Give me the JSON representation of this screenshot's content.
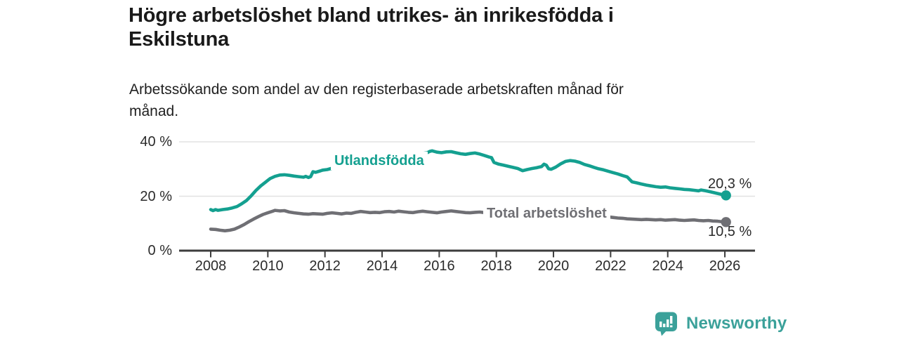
{
  "header": {
    "title": "Högre arbetslöshet bland utrikes- än inrikesfödda i Eskilstuna",
    "subtitle": "Arbetssökande som andel av den registerbaserade arbetskraften månad för månad."
  },
  "chart_data": {
    "type": "line",
    "title": "Högre arbetslöshet bland utrikes- än inrikesfödda i Eskilstuna",
    "xlabel": "",
    "ylabel": "",
    "ylim": [
      0,
      42
    ],
    "xlim": [
      2006.9,
      2027.05
    ],
    "grid": "horizontal-only",
    "legend": "inline-labels-on-lines",
    "x_tick_years": [
      2008,
      2010,
      2012,
      2014,
      2016,
      2018,
      2020,
      2022,
      2024,
      2026
    ],
    "x_ticks": [
      "2008",
      "2010",
      "2012",
      "2014",
      "2016",
      "2018",
      "2020",
      "2022",
      "2024",
      "2026"
    ],
    "y_ticks": [
      {
        "value": 0,
        "label": "0 %"
      },
      {
        "value": 20,
        "label": "20 %"
      },
      {
        "value": 40,
        "label": "40 %"
      }
    ],
    "series": [
      {
        "name": "Utlandsfödda",
        "color": "#14a090",
        "end_label": "20,3 %",
        "end_value": 20.3,
        "points": [
          [
            2008.0,
            15.1
          ],
          [
            2008.08,
            14.7
          ],
          [
            2008.17,
            15.1
          ],
          [
            2008.25,
            14.8
          ],
          [
            2008.42,
            15.1
          ],
          [
            2008.58,
            15.3
          ],
          [
            2008.75,
            15.7
          ],
          [
            2008.92,
            16.2
          ],
          [
            2009.08,
            17.2
          ],
          [
            2009.25,
            18.4
          ],
          [
            2009.42,
            20.2
          ],
          [
            2009.58,
            22.1
          ],
          [
            2009.75,
            23.8
          ],
          [
            2009.92,
            25.2
          ],
          [
            2010.08,
            26.5
          ],
          [
            2010.25,
            27.3
          ],
          [
            2010.42,
            27.8
          ],
          [
            2010.58,
            27.9
          ],
          [
            2010.75,
            27.7
          ],
          [
            2010.92,
            27.4
          ],
          [
            2011.08,
            27.2
          ],
          [
            2011.25,
            27.0
          ],
          [
            2011.33,
            27.3
          ],
          [
            2011.42,
            26.9
          ],
          [
            2011.5,
            27.2
          ],
          [
            2011.58,
            29.0
          ],
          [
            2011.67,
            28.8
          ],
          [
            2011.83,
            29.3
          ],
          [
            2011.92,
            29.6
          ],
          [
            2012.08,
            29.8
          ],
          [
            2012.25,
            30.3
          ],
          [
            2012.42,
            30.6
          ],
          [
            2012.58,
            30.9
          ],
          [
            2012.83,
            31.3
          ],
          [
            2013.08,
            31.8
          ],
          [
            2013.33,
            32.4
          ],
          [
            2013.58,
            32.9
          ],
          [
            2013.83,
            33.3
          ],
          [
            2014.08,
            33.8
          ],
          [
            2014.33,
            34.2
          ],
          [
            2014.58,
            34.6
          ],
          [
            2014.83,
            35.0
          ],
          [
            2015.08,
            35.3
          ],
          [
            2015.33,
            35.6
          ],
          [
            2015.58,
            36.0
          ],
          [
            2015.67,
            36.5
          ],
          [
            2015.75,
            36.7
          ],
          [
            2015.92,
            36.2
          ],
          [
            2016.08,
            36.0
          ],
          [
            2016.25,
            36.3
          ],
          [
            2016.42,
            36.4
          ],
          [
            2016.58,
            36.0
          ],
          [
            2016.75,
            35.6
          ],
          [
            2016.92,
            35.4
          ],
          [
            2017.08,
            35.7
          ],
          [
            2017.25,
            35.9
          ],
          [
            2017.42,
            35.5
          ],
          [
            2017.58,
            35.0
          ],
          [
            2017.75,
            34.4
          ],
          [
            2017.83,
            34.2
          ],
          [
            2017.92,
            32.4
          ],
          [
            2018.08,
            31.8
          ],
          [
            2018.25,
            31.4
          ],
          [
            2018.42,
            31.0
          ],
          [
            2018.58,
            30.6
          ],
          [
            2018.75,
            30.2
          ],
          [
            2018.92,
            29.4
          ],
          [
            2019.08,
            29.8
          ],
          [
            2019.25,
            30.2
          ],
          [
            2019.42,
            30.5
          ],
          [
            2019.58,
            30.9
          ],
          [
            2019.67,
            31.8
          ],
          [
            2019.75,
            31.4
          ],
          [
            2019.83,
            30.1
          ],
          [
            2019.92,
            29.9
          ],
          [
            2020.08,
            30.7
          ],
          [
            2020.25,
            31.9
          ],
          [
            2020.42,
            32.8
          ],
          [
            2020.58,
            33.1
          ],
          [
            2020.75,
            32.9
          ],
          [
            2020.92,
            32.4
          ],
          [
            2021.08,
            31.7
          ],
          [
            2021.25,
            31.2
          ],
          [
            2021.42,
            30.6
          ],
          [
            2021.58,
            30.1
          ],
          [
            2021.75,
            29.7
          ],
          [
            2021.92,
            29.2
          ],
          [
            2022.08,
            28.7
          ],
          [
            2022.25,
            28.2
          ],
          [
            2022.42,
            27.6
          ],
          [
            2022.58,
            27.1
          ],
          [
            2022.75,
            25.3
          ],
          [
            2022.92,
            24.9
          ],
          [
            2023.08,
            24.5
          ],
          [
            2023.25,
            24.1
          ],
          [
            2023.42,
            23.8
          ],
          [
            2023.58,
            23.5
          ],
          [
            2023.75,
            23.3
          ],
          [
            2023.92,
            23.4
          ],
          [
            2024.08,
            23.1
          ],
          [
            2024.25,
            22.9
          ],
          [
            2024.42,
            22.7
          ],
          [
            2024.58,
            22.5
          ],
          [
            2024.75,
            22.4
          ],
          [
            2024.92,
            22.2
          ],
          [
            2025.08,
            22.0
          ],
          [
            2025.17,
            22.3
          ],
          [
            2025.33,
            22.0
          ],
          [
            2025.5,
            21.6
          ],
          [
            2025.67,
            21.2
          ],
          [
            2025.83,
            20.8
          ],
          [
            2026.04,
            20.3
          ]
        ]
      },
      {
        "name": "Total arbetslöshet",
        "color": "#6f6f74",
        "end_label": "10,5 %",
        "end_value": 10.5,
        "points": [
          [
            2008.0,
            7.9
          ],
          [
            2008.17,
            7.8
          ],
          [
            2008.33,
            7.5
          ],
          [
            2008.5,
            7.3
          ],
          [
            2008.67,
            7.5
          ],
          [
            2008.83,
            7.9
          ],
          [
            2009.0,
            8.7
          ],
          [
            2009.17,
            9.6
          ],
          [
            2009.33,
            10.6
          ],
          [
            2009.5,
            11.6
          ],
          [
            2009.67,
            12.5
          ],
          [
            2009.83,
            13.3
          ],
          [
            2010.0,
            13.9
          ],
          [
            2010.17,
            14.5
          ],
          [
            2010.25,
            14.8
          ],
          [
            2010.42,
            14.6
          ],
          [
            2010.58,
            14.7
          ],
          [
            2010.75,
            14.2
          ],
          [
            2010.92,
            13.9
          ],
          [
            2011.08,
            13.7
          ],
          [
            2011.25,
            13.5
          ],
          [
            2011.42,
            13.4
          ],
          [
            2011.58,
            13.6
          ],
          [
            2011.75,
            13.5
          ],
          [
            2011.92,
            13.4
          ],
          [
            2012.08,
            13.7
          ],
          [
            2012.25,
            13.9
          ],
          [
            2012.42,
            13.7
          ],
          [
            2012.58,
            13.5
          ],
          [
            2012.75,
            13.8
          ],
          [
            2012.92,
            13.7
          ],
          [
            2013.08,
            14.1
          ],
          [
            2013.25,
            14.4
          ],
          [
            2013.42,
            14.2
          ],
          [
            2013.58,
            14.0
          ],
          [
            2013.75,
            14.1
          ],
          [
            2013.92,
            14.0
          ],
          [
            2014.08,
            14.3
          ],
          [
            2014.25,
            14.4
          ],
          [
            2014.42,
            14.2
          ],
          [
            2014.58,
            14.5
          ],
          [
            2014.75,
            14.3
          ],
          [
            2014.92,
            14.1
          ],
          [
            2015.08,
            14.0
          ],
          [
            2015.25,
            14.3
          ],
          [
            2015.42,
            14.5
          ],
          [
            2015.58,
            14.3
          ],
          [
            2015.75,
            14.1
          ],
          [
            2015.92,
            13.9
          ],
          [
            2016.08,
            14.2
          ],
          [
            2016.25,
            14.4
          ],
          [
            2016.42,
            14.6
          ],
          [
            2016.58,
            14.4
          ],
          [
            2016.75,
            14.2
          ],
          [
            2016.92,
            14.0
          ],
          [
            2017.08,
            13.9
          ],
          [
            2017.25,
            14.1
          ],
          [
            2017.42,
            14.2
          ],
          [
            2017.58,
            14.0
          ],
          [
            2017.75,
            13.8
          ],
          [
            2017.92,
            13.6
          ],
          [
            2018.17,
            13.4
          ],
          [
            2018.42,
            13.2
          ],
          [
            2018.67,
            13.0
          ],
          [
            2018.92,
            12.9
          ],
          [
            2019.17,
            13.0
          ],
          [
            2019.42,
            13.1
          ],
          [
            2019.67,
            13.0
          ],
          [
            2019.92,
            13.2
          ],
          [
            2020.17,
            13.7
          ],
          [
            2020.42,
            14.0
          ],
          [
            2020.67,
            14.1
          ],
          [
            2020.92,
            13.8
          ],
          [
            2021.17,
            13.4
          ],
          [
            2021.42,
            13.0
          ],
          [
            2021.67,
            12.7
          ],
          [
            2021.92,
            12.4
          ],
          [
            2022.08,
            12.2
          ],
          [
            2022.25,
            12.0
          ],
          [
            2022.42,
            11.9
          ],
          [
            2022.58,
            11.7
          ],
          [
            2022.75,
            11.6
          ],
          [
            2022.92,
            11.5
          ],
          [
            2023.08,
            11.4
          ],
          [
            2023.25,
            11.5
          ],
          [
            2023.42,
            11.4
          ],
          [
            2023.58,
            11.3
          ],
          [
            2023.75,
            11.4
          ],
          [
            2023.92,
            11.2
          ],
          [
            2024.08,
            11.3
          ],
          [
            2024.25,
            11.4
          ],
          [
            2024.42,
            11.2
          ],
          [
            2024.58,
            11.1
          ],
          [
            2024.75,
            11.2
          ],
          [
            2024.92,
            11.3
          ],
          [
            2025.08,
            11.1
          ],
          [
            2025.25,
            11.0
          ],
          [
            2025.42,
            11.1
          ],
          [
            2025.58,
            10.9
          ],
          [
            2025.75,
            10.8
          ],
          [
            2025.92,
            10.6
          ],
          [
            2026.04,
            10.5
          ]
        ]
      }
    ],
    "colors": {
      "gridline": "#e2e2e2",
      "axis": "#3d3d3d",
      "tick_text": "#2b2b2b"
    }
  },
  "footer": {
    "brand": "Newsworthy",
    "logo_icon": "newsworthy-speech-bubble-bar-chart-icon",
    "brand_color": "#3ba19a"
  }
}
